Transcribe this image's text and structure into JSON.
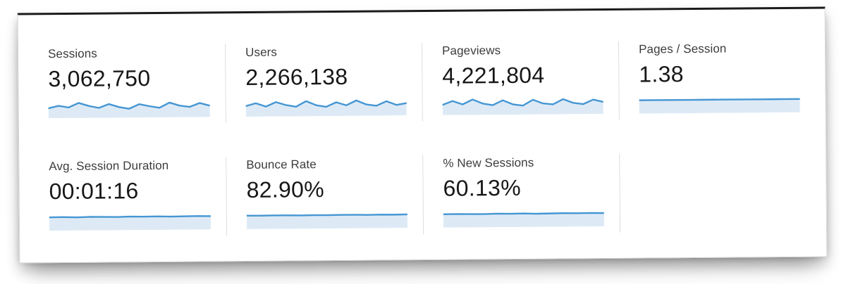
{
  "metrics": [
    {
      "label": "Sessions",
      "value": "3,062,750"
    },
    {
      "label": "Users",
      "value": "2,266,138"
    },
    {
      "label": "Pageviews",
      "value": "4,221,804"
    },
    {
      "label": "Pages / Session",
      "value": "1.38"
    },
    {
      "label": "Avg. Session Duration",
      "value": "00:01:16"
    },
    {
      "label": "Bounce Rate",
      "value": "82.90%"
    },
    {
      "label": "% New Sessions",
      "value": "60.13%"
    }
  ],
  "colors": {
    "spark_line": "#4596d3",
    "spark_fill": "#ddeaf6",
    "divider": "#dedede",
    "value_text": "#171717",
    "label_text": "#3c3c3c"
  },
  "chart_data": [
    {
      "type": "area",
      "name": "Sessions sparkline",
      "values": [
        0.58,
        0.72,
        0.62,
        0.88,
        0.7,
        0.58,
        0.8,
        0.62,
        0.52,
        0.78,
        0.66,
        0.56,
        0.86,
        0.68,
        0.6,
        0.82,
        0.66
      ],
      "ylim": [
        0,
        1
      ],
      "line_color": "#4596d3",
      "fill_color": "#ddeaf6"
    },
    {
      "type": "area",
      "name": "Users sparkline",
      "values": [
        0.62,
        0.78,
        0.58,
        0.84,
        0.66,
        0.56,
        0.88,
        0.64,
        0.54,
        0.8,
        0.62,
        0.9,
        0.66,
        0.58,
        0.84,
        0.62,
        0.72
      ],
      "ylim": [
        0,
        1
      ],
      "line_color": "#4596d3",
      "fill_color": "#ddeaf6"
    },
    {
      "type": "area",
      "name": "Pageviews sparkline",
      "values": [
        0.6,
        0.82,
        0.62,
        0.9,
        0.66,
        0.56,
        0.84,
        0.6,
        0.52,
        0.86,
        0.64,
        0.58,
        0.88,
        0.66,
        0.58,
        0.84,
        0.7
      ],
      "ylim": [
        0,
        1
      ],
      "line_color": "#4596d3",
      "fill_color": "#ddeaf6"
    },
    {
      "type": "area",
      "name": "Pages / Session sparkline",
      "values": [
        0.78,
        0.78,
        0.78,
        0.78,
        0.78,
        0.78,
        0.78,
        0.78,
        0.78,
        0.78,
        0.78,
        0.78,
        0.78
      ],
      "ylim": [
        0,
        1
      ],
      "line_color": "#4596d3",
      "fill_color": "#ddeaf6"
    },
    {
      "type": "area",
      "name": "Avg. Session Duration sparkline",
      "values": [
        0.78,
        0.79,
        0.77,
        0.79,
        0.78,
        0.77,
        0.79,
        0.78,
        0.79,
        0.77,
        0.78,
        0.79,
        0.78
      ],
      "ylim": [
        0,
        1
      ],
      "line_color": "#4596d3",
      "fill_color": "#ddeaf6"
    },
    {
      "type": "area",
      "name": "Bounce Rate sparkline",
      "values": [
        0.79,
        0.78,
        0.79,
        0.79,
        0.78,
        0.79,
        0.78,
        0.79,
        0.79,
        0.78,
        0.79,
        0.78,
        0.79
      ],
      "ylim": [
        0,
        1
      ],
      "line_color": "#4596d3",
      "fill_color": "#ddeaf6"
    },
    {
      "type": "area",
      "name": "% New Sessions sparkline",
      "values": [
        0.78,
        0.79,
        0.78,
        0.77,
        0.79,
        0.78,
        0.79,
        0.77,
        0.78,
        0.79,
        0.78,
        0.79,
        0.78
      ],
      "ylim": [
        0,
        1
      ],
      "line_color": "#4596d3",
      "fill_color": "#ddeaf6"
    }
  ]
}
